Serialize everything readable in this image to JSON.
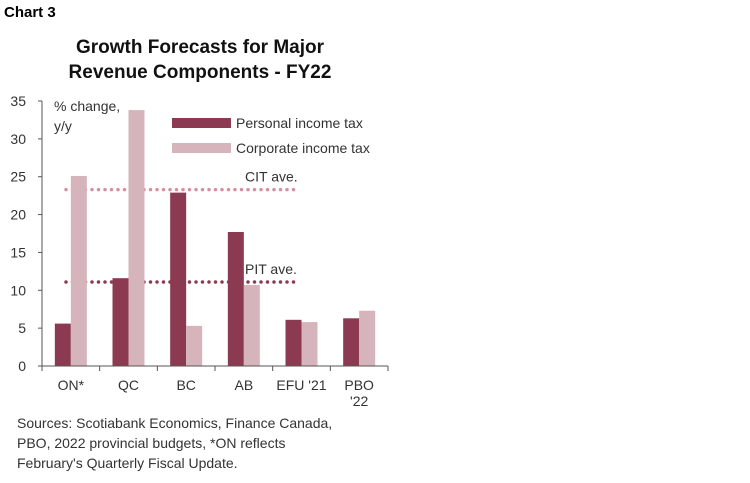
{
  "header": {
    "label": "Chart 3"
  },
  "chart_data": {
    "type": "bar",
    "title_lines": [
      "Growth Forecasts for Major",
      "Revenue Components - FY22"
    ],
    "ylabel_lines": [
      "% change,",
      "y/y"
    ],
    "categories": [
      [
        "ON*"
      ],
      [
        "QC"
      ],
      [
        "BC"
      ],
      [
        "AB"
      ],
      [
        "EFU '21"
      ],
      [
        "PBO",
        "'22"
      ]
    ],
    "series": [
      {
        "name": "Personal income tax",
        "color": "#8b3a52",
        "values": [
          5.6,
          11.6,
          22.9,
          17.7,
          6.1,
          6.3
        ]
      },
      {
        "name": "Corporate income tax",
        "color": "#d6b4bb",
        "values": [
          25.1,
          33.8,
          5.3,
          10.7,
          5.8,
          7.3
        ]
      }
    ],
    "averages": [
      {
        "label": "CIT ave.",
        "value": 23.3,
        "color": "#d68fa1"
      },
      {
        "label": "PIT ave.",
        "value": 11.1,
        "color": "#8b3a52"
      }
    ],
    "ylim": [
      0,
      35
    ],
    "yticks": [
      0,
      5,
      10,
      15,
      20,
      25,
      30,
      35
    ],
    "legend_position": "top-right",
    "grid": false
  },
  "footer": {
    "source_lines": [
      "Sources: Scotiabank Economics, Finance Canada,",
      "PBO, 2022 provincial budgets, *ON reflects",
      "February's Quarterly Fiscal Update."
    ]
  }
}
